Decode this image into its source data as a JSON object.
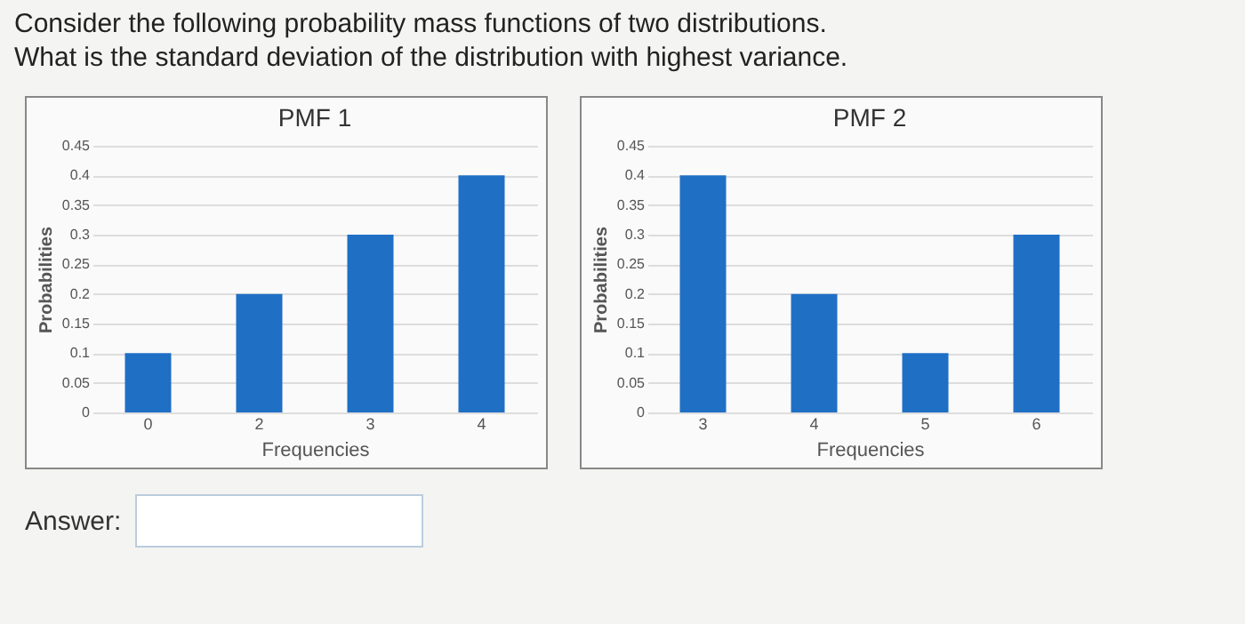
{
  "chart_data": [
    {
      "type": "bar",
      "title": "PMF 1",
      "xlabel": "Frequencies",
      "ylabel": "Probabilities",
      "categories": [
        "0",
        "2",
        "3",
        "4"
      ],
      "values": [
        0.1,
        0.2,
        0.3,
        0.4
      ],
      "color": "#1f6fc5",
      "ylim": [
        0,
        0.45
      ],
      "yticks": [
        0,
        0.05,
        0.1,
        0.15,
        0.2,
        0.25,
        0.3,
        0.35,
        0.4,
        0.45
      ],
      "grid": "y",
      "annotations": [
        "Consider the following probability mass functions of two distributions.",
        "What is the standard deviation of the distribution with highest variance."
      ]
    },
    {
      "type": "bar",
      "title": "PMF 2",
      "xlabel": "Frequencies",
      "ylabel": "Probabilities",
      "categories": [
        "3",
        "4",
        "5",
        "6"
      ],
      "values": [
        0.4,
        0.2,
        0.1,
        0.3
      ],
      "color": "#1f6fc5",
      "ylim": [
        0,
        0.45
      ],
      "yticks": [
        0,
        0.05,
        0.1,
        0.15,
        0.2,
        0.25,
        0.3,
        0.35,
        0.4,
        0.45
      ],
      "grid": "y",
      "annotations": [
        "Answer:"
      ]
    }
  ]
}
